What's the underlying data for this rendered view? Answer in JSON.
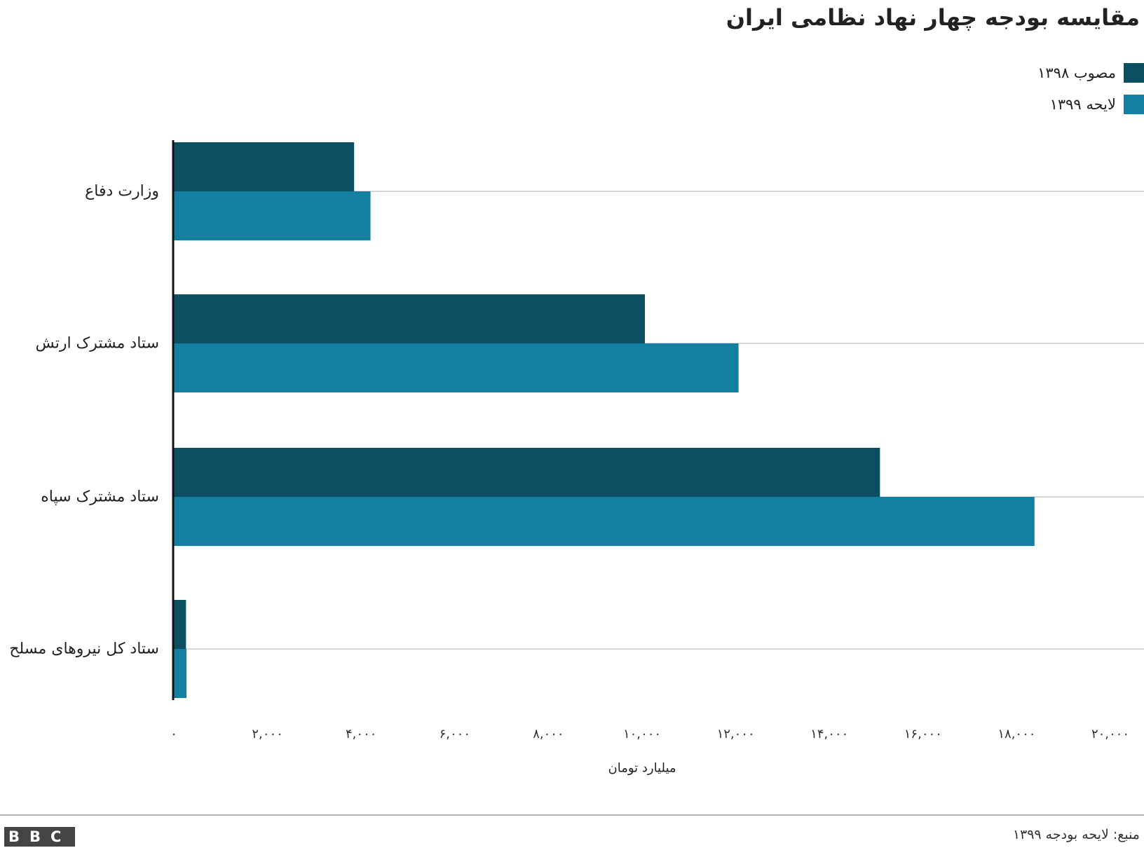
{
  "chart_data": {
    "type": "hbar",
    "title": "مقایسه بودجه چهار نهاد نظامی ایران",
    "categories": [
      "وزارت دفاع",
      "ستاد مشترک ارتش",
      "ستاد مشترک سپاه",
      "ستاد کل نیروهای مسلح"
    ],
    "series": [
      {
        "name": "مصوب ۱۳۹۸",
        "color": "#0d4f62",
        "values": [
          3850,
          10060,
          15080,
          260
        ]
      },
      {
        "name": "لایحه ۱۳۹۹",
        "color": "#1380a1",
        "values": [
          4200,
          12060,
          18380,
          270
        ]
      }
    ],
    "xlim": [
      0,
      20000
    ],
    "xticks": [
      {
        "value": 0,
        "label": "۰"
      },
      {
        "value": 2000,
        "label": "۲,۰۰۰"
      },
      {
        "value": 4000,
        "label": "۴,۰۰۰"
      },
      {
        "value": 6000,
        "label": "۶,۰۰۰"
      },
      {
        "value": 8000,
        "label": "۸,۰۰۰"
      },
      {
        "value": 10000,
        "label": "۱۰,۰۰۰"
      },
      {
        "value": 12000,
        "label": "۱۲,۰۰۰"
      },
      {
        "value": 14000,
        "label": "۱۴,۰۰۰"
      },
      {
        "value": 16000,
        "label": "۱۶,۰۰۰"
      },
      {
        "value": 18000,
        "label": "۱۸,۰۰۰"
      },
      {
        "value": 20000,
        "label": "۲۰,۰۰۰"
      }
    ],
    "xlabel": "میلیارد تومان",
    "legend": "top-right",
    "source": "منبع: لایحه بودجه ۱۳۹۹",
    "logo": "BBC"
  }
}
